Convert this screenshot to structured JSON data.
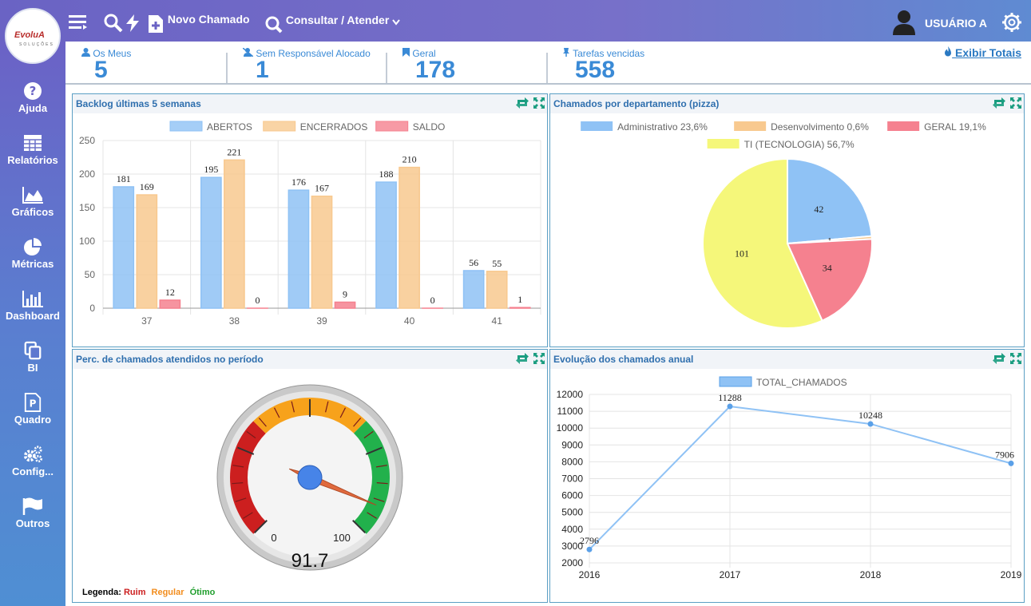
{
  "header": {
    "logo_text": "EvoluA",
    "logo_subtext": "SOLUÇÕES",
    "new_ticket": "Novo Chamado",
    "consult": "Consultar / Atender",
    "user": "USUÁRIO A"
  },
  "sidebar": {
    "items": [
      {
        "label": "Ajuda",
        "icon": "help-icon"
      },
      {
        "label": "Relatórios",
        "icon": "table-icon"
      },
      {
        "label": "Gráficos",
        "icon": "area-chart-icon"
      },
      {
        "label": "Métricas",
        "icon": "pie-chart-icon"
      },
      {
        "label": "Dashboard",
        "icon": "bar-chart-icon"
      },
      {
        "label": "BI",
        "icon": "copy-icon"
      },
      {
        "label": "Quadro",
        "icon": "board-icon"
      },
      {
        "label": "Config...",
        "icon": "gears-icon"
      },
      {
        "label": "Outros",
        "icon": "flag-icon"
      }
    ]
  },
  "stats": [
    {
      "label": "Os Meus",
      "value": "5"
    },
    {
      "label": "Sem Responsável Alocado",
      "value": "1"
    },
    {
      "label": "Geral",
      "value": "178"
    },
    {
      "label": "Tarefas vencidas",
      "value": "558"
    }
  ],
  "exibir_totais": "Exibir Totais",
  "panels": {
    "backlog": "Backlog últimas 5 semanas",
    "dept": "Chamados por departamento (pizza)",
    "perc": "Perc. de chamados atendidos no período",
    "evolucao": "Evolução dos chamados anual"
  },
  "gauge": {
    "value": 91.7,
    "value_text": "91.7",
    "min_label": "0",
    "max_label": "100",
    "legend_label": "Legenda:",
    "legend_items": [
      {
        "label": "Ruim",
        "color": "#cc1f1f"
      },
      {
        "label": "Regular",
        "color": "#f28c1c"
      },
      {
        "label": "Ótimo",
        "color": "#1f9e2c"
      }
    ]
  },
  "chart_data": [
    {
      "type": "bar",
      "title": "Backlog últimas 5 semanas",
      "categories": [
        "37",
        "38",
        "39",
        "40",
        "41"
      ],
      "series": [
        {
          "name": "ABERTOS",
          "values": [
            181,
            195,
            176,
            188,
            56
          ],
          "color": "#8fc2f5"
        },
        {
          "name": "ENCERRADOS",
          "values": [
            169,
            221,
            167,
            210,
            55
          ],
          "color": "#f8c98f"
        },
        {
          "name": "SALDO",
          "values": [
            12,
            0,
            9,
            0,
            1
          ],
          "color": "#f5818f"
        }
      ],
      "ylim": [
        0,
        250
      ],
      "yticks": [
        0,
        50,
        100,
        150,
        200,
        250
      ],
      "legend": "top"
    },
    {
      "type": "pie",
      "title": "Chamados por departamento (pizza)",
      "slices": [
        {
          "name": "Administrativo 23,6%",
          "value": 42,
          "color": "#8fc2f5"
        },
        {
          "name": "Desenvolvimento 0,6%",
          "value": 1,
          "color": "#f8c98f"
        },
        {
          "name": "GERAL 19,1%",
          "value": 34,
          "color": "#f5818f"
        },
        {
          "name": "TI (TECNOLOGIA) 56,7%",
          "value": 101,
          "color": "#f5f77a"
        }
      ],
      "legend": "top"
    },
    {
      "type": "line",
      "title": "Evolução dos chamados anual",
      "x": [
        "2016",
        "2017",
        "2018",
        "2019"
      ],
      "series": [
        {
          "name": "TOTAL_CHAMADOS",
          "values": [
            2796,
            11288,
            10248,
            7906
          ],
          "color": "#8fc2f5"
        }
      ],
      "ylim": [
        2000,
        12000
      ],
      "yticks": [
        2000,
        3000,
        4000,
        5000,
        6000,
        7000,
        8000,
        9000,
        10000,
        11000,
        12000
      ],
      "legend": "top"
    }
  ]
}
